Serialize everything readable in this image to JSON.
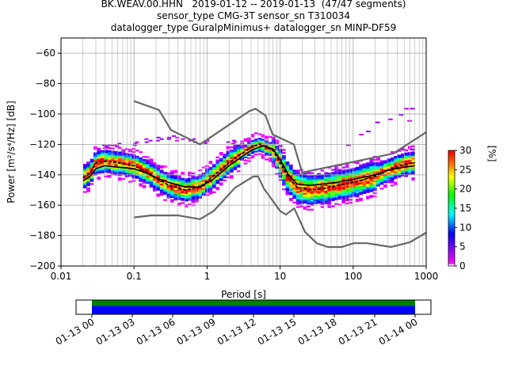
{
  "title_lines": [
    "BK.WEAV.00.HHN   2019-01-12 -- 2019-01-13  (47/47 segments)",
    "sensor_type CMG-3T sensor_sn T310034",
    "datalogger_type GuralpMinimus+ datalogger_sn MINP-DF59"
  ],
  "chart_data": {
    "type": "heatmap",
    "xlabel": "Period [s]",
    "ylabel": "Power [m²/s⁴/Hz] [dB]",
    "x_scale": "log",
    "xlim": [
      0.01,
      1000
    ],
    "ylim": [
      -200,
      -50
    ],
    "x_ticks": [
      "0.01",
      "0.1",
      "1",
      "10",
      "100",
      "1000"
    ],
    "y_ticks": [
      "-60",
      "-80",
      "-100",
      "-120",
      "-140",
      "-160",
      "-180",
      "-200"
    ],
    "grid": true,
    "colorbar": {
      "label": "[%]",
      "range": [
        0,
        30
      ],
      "ticks": [
        "0",
        "5",
        "10",
        "15",
        "20",
        "25",
        "30"
      ],
      "colormap": [
        "#ffffff",
        "#ff00ff",
        "#0000ff",
        "#00ffff",
        "#00ff00",
        "#ffff00",
        "#ff8000",
        "#ff0000"
      ]
    },
    "series": [
      {
        "role": "new_high_noise_model",
        "color": "#666666",
        "x": [
          0.1,
          0.22,
          0.32,
          0.8,
          3.8,
          4.6,
          6.3,
          7.9,
          15.4,
          20,
          354.8,
          1000
        ],
        "y": [
          -91.5,
          -97.4,
          -110.5,
          -120,
          -98,
          -96.5,
          -101,
          -113.5,
          -120,
          -138.5,
          -126,
          -112
        ]
      },
      {
        "role": "new_low_noise_model",
        "color": "#666666",
        "x": [
          0.1,
          0.17,
          0.4,
          0.8,
          1.24,
          2.4,
          4.3,
          5,
          6,
          10,
          12,
          15.6,
          21.9,
          31.6,
          45,
          70,
          101,
          154,
          328,
          600,
          1000
        ],
        "y": [
          -168,
          -166.7,
          -166.7,
          -169.2,
          -163.7,
          -148.6,
          -141.1,
          -141.1,
          -149,
          -163.8,
          -166.2,
          -162.1,
          -177.5,
          -185,
          -187.5,
          -187.5,
          -185,
          -185,
          -187.5,
          -184.4,
          -178
        ]
      },
      {
        "role": "mean",
        "color": "#000000",
        "x": [
          0.02,
          0.025,
          0.03,
          0.04,
          0.06,
          0.1,
          0.15,
          0.2,
          0.3,
          0.5,
          0.8,
          1.2,
          2,
          3,
          4,
          5,
          6,
          8,
          10,
          13,
          17,
          25,
          40,
          60,
          100,
          200,
          300,
          500,
          700
        ],
        "y": [
          -144,
          -141,
          -136,
          -134,
          -135,
          -136,
          -139,
          -142,
          -145,
          -148,
          -148,
          -143,
          -134,
          -128,
          -124,
          -122,
          -121,
          -123,
          -130,
          -140,
          -146,
          -147,
          -146,
          -145,
          -143,
          -140,
          -137,
          -135,
          -134
        ]
      },
      {
        "role": "mode",
        "color": "#000000",
        "x": [
          0.02,
          0.025,
          0.03,
          0.04,
          0.06,
          0.1,
          0.15,
          0.2,
          0.3,
          0.5,
          0.8,
          1.2,
          2,
          3,
          4,
          5,
          6,
          8,
          10,
          13,
          17,
          25,
          40,
          60,
          100,
          200,
          300,
          500,
          700
        ],
        "y": [
          -142,
          -139,
          -132,
          -131,
          -132,
          -134,
          -138,
          -142,
          -147,
          -150,
          -148,
          -141,
          -132,
          -126,
          -122,
          -120,
          -121,
          -124,
          -132,
          -142,
          -148,
          -150,
          -149,
          -147,
          -145,
          -141,
          -137,
          -133,
          -132
        ]
      }
    ]
  },
  "timeline": {
    "tick_labels": [
      "01-13 00",
      "01-13 03",
      "01-13 06",
      "01-13 09",
      "01-13 12",
      "01-13 15",
      "01-13 18",
      "01-13 21",
      "01-14 00"
    ],
    "coverage_colors": [
      "#008000",
      "#0000ff"
    ]
  }
}
